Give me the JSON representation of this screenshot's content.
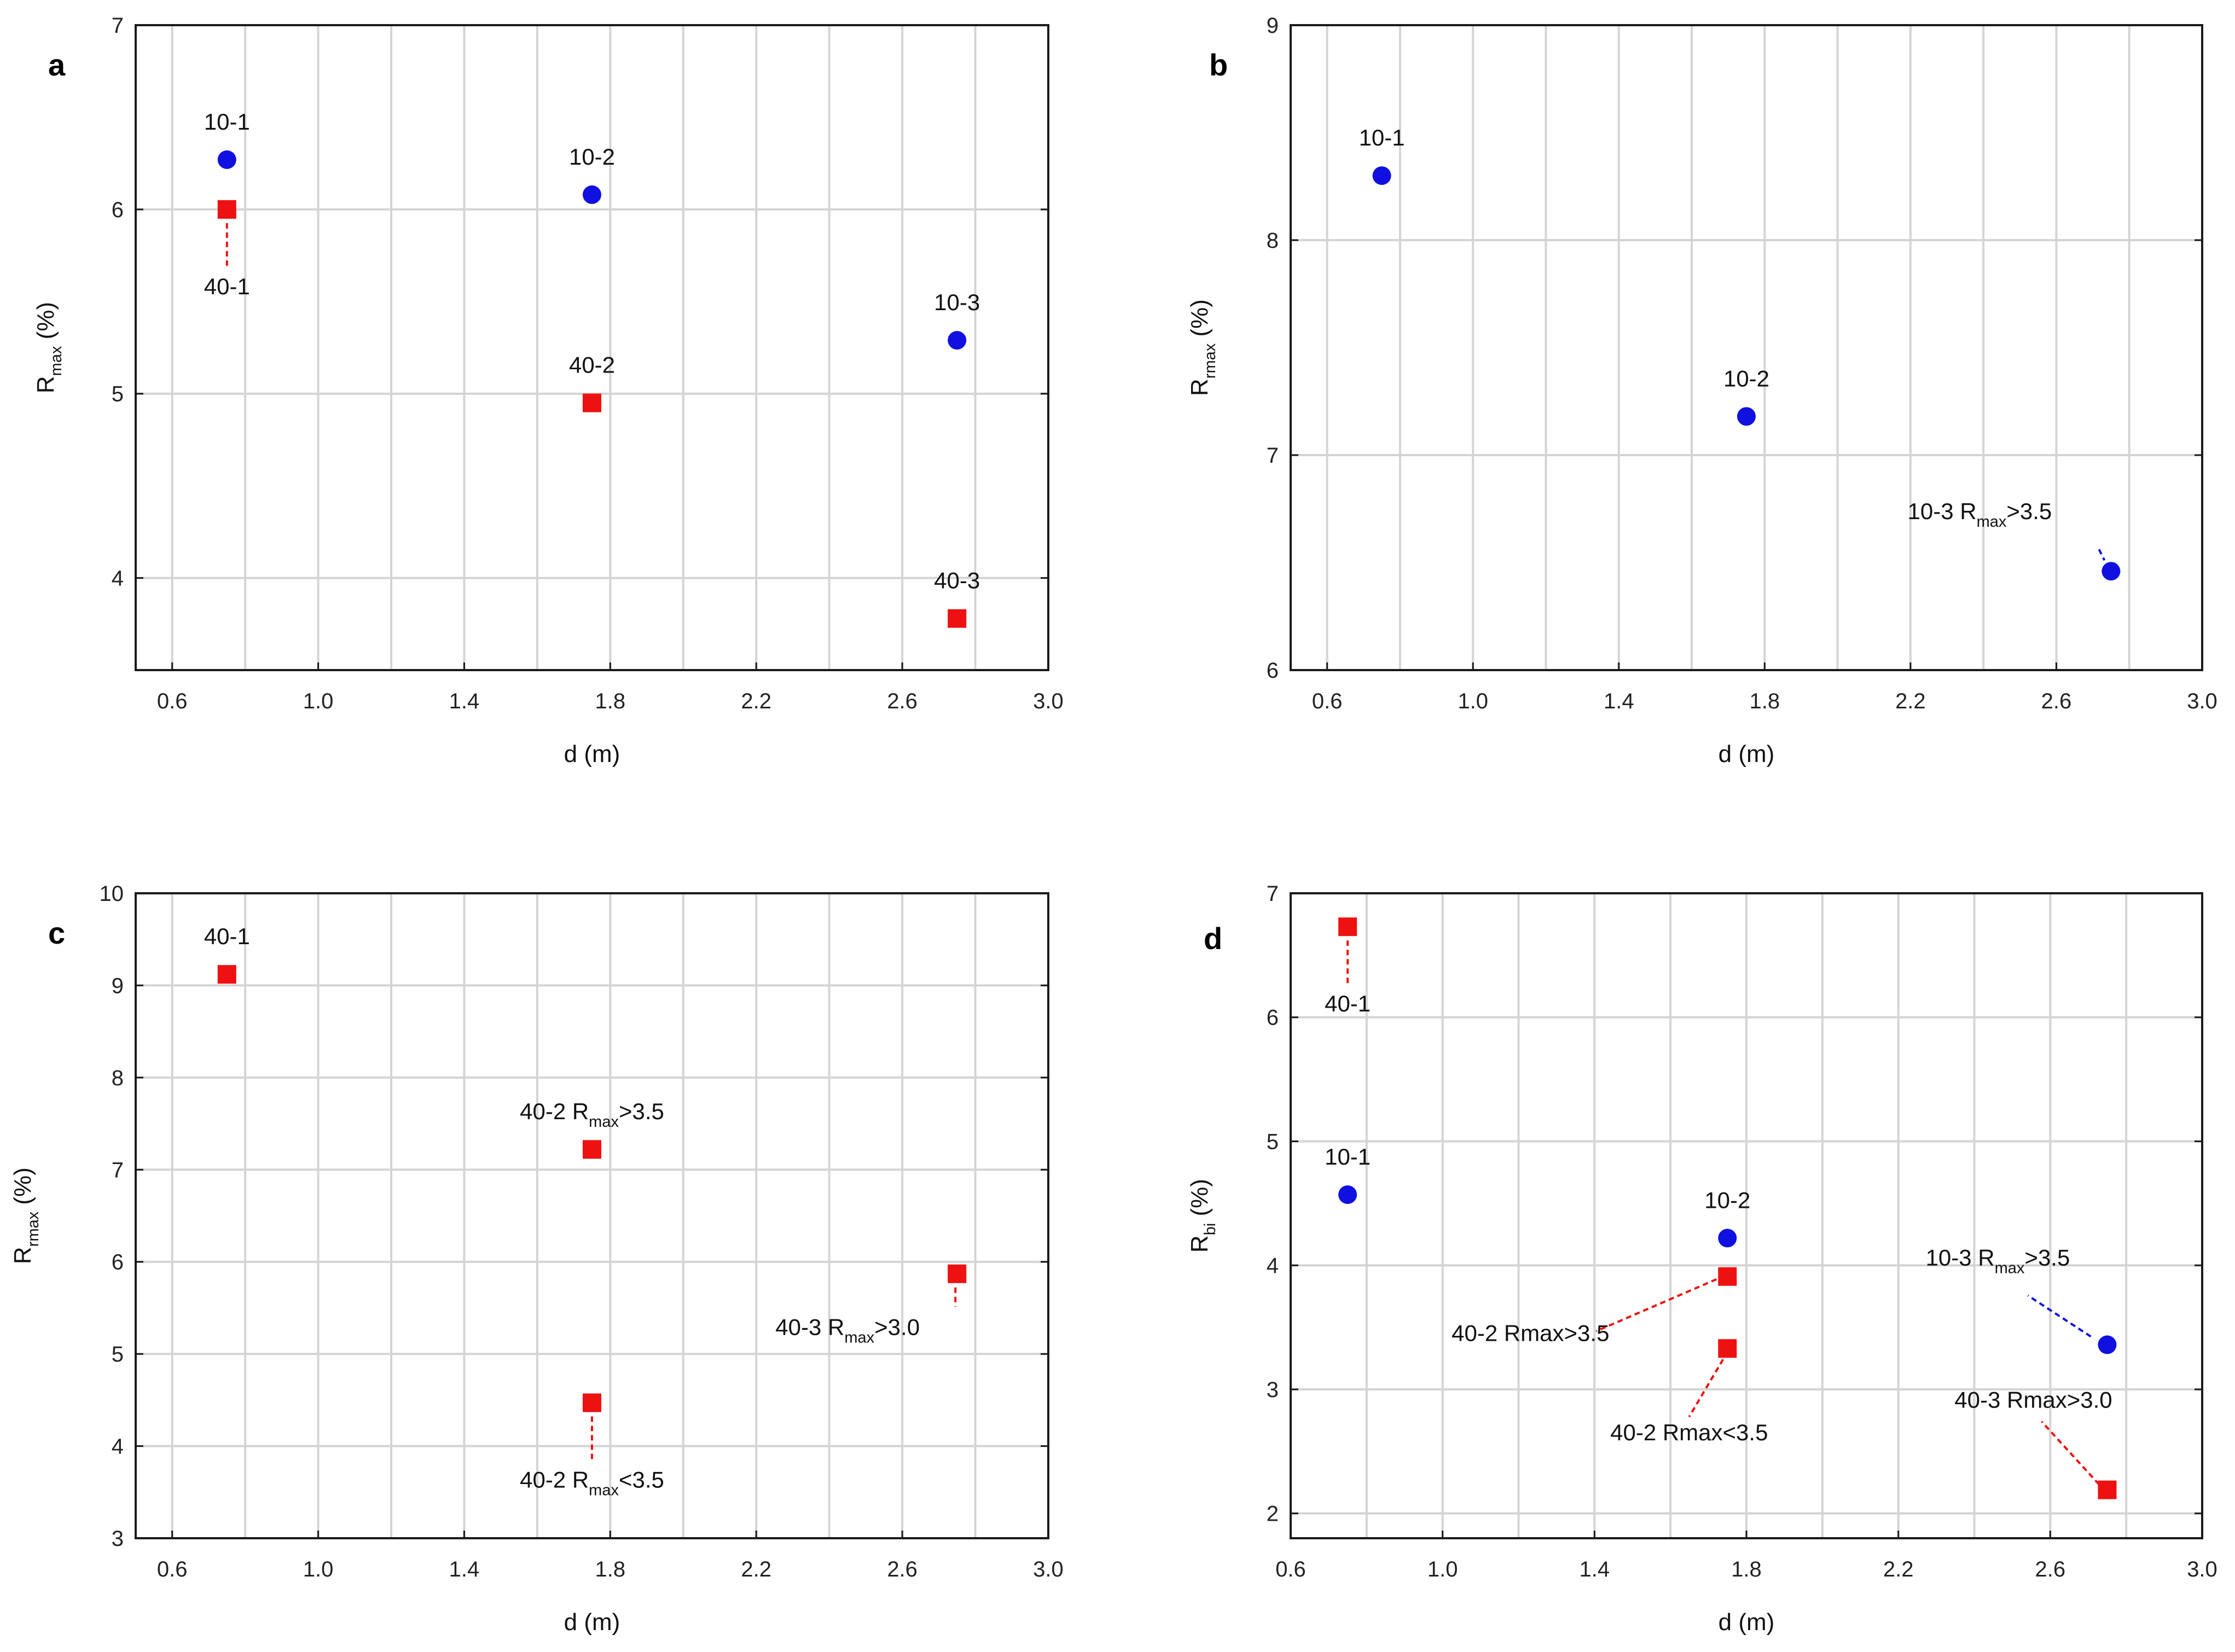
{
  "colors": {
    "blue": "#1010e0",
    "red": "#ee1111",
    "grid": "#d4d4d4",
    "frame": "#1a1a1a"
  },
  "chart_data": [
    {
      "type": "scatter",
      "panel": "a",
      "xlabel": "d (m)",
      "ylabel": {
        "base": "R",
        "sub": "max",
        "suffix": " (%)"
      },
      "xlim": [
        0.5,
        3.0
      ],
      "ylim": [
        3.5,
        7.0
      ],
      "xticks": [
        "0.6",
        "1.0",
        "1.4",
        "1.8",
        "2.2",
        "2.6",
        "3.0"
      ],
      "yticks": [
        "4",
        "5",
        "6",
        "7"
      ],
      "grid": true,
      "series": [
        {
          "name": "10",
          "marker": "circle",
          "color": "blue",
          "points": [
            {
              "x": 0.75,
              "y": 6.27,
              "label": {
                "text": "10-1",
                "pos": "above"
              }
            },
            {
              "x": 1.75,
              "y": 6.08,
              "label": {
                "text": "10-2",
                "pos": "above"
              }
            },
            {
              "x": 2.75,
              "y": 5.29,
              "label": {
                "text": "10-3",
                "pos": "above"
              }
            }
          ]
        },
        {
          "name": "40",
          "marker": "square",
          "color": "red",
          "points": [
            {
              "x": 0.75,
              "y": 6.0,
              "label": {
                "text": "40-1",
                "pos": "below",
                "leader": true
              }
            },
            {
              "x": 1.75,
              "y": 4.95,
              "label": {
                "text": "40-2",
                "pos": "above"
              }
            },
            {
              "x": 2.75,
              "y": 3.78,
              "label": {
                "text": "40-3",
                "pos": "above"
              }
            }
          ]
        }
      ]
    },
    {
      "type": "scatter",
      "panel": "b",
      "xlabel": "d (m)",
      "ylabel": {
        "base": "R",
        "sub": "rmax",
        "suffix": " (%)"
      },
      "xlim": [
        0.5,
        3.0
      ],
      "ylim": [
        6.0,
        9.0
      ],
      "xticks": [
        "0.6",
        "1.0",
        "1.4",
        "1.8",
        "2.2",
        "2.6",
        "3.0"
      ],
      "yticks": [
        "6",
        "7",
        "8",
        "9"
      ],
      "grid": true,
      "series": [
        {
          "name": "10",
          "marker": "circle",
          "color": "blue",
          "points": [
            {
              "x": 0.75,
              "y": 8.3,
              "label": {
                "text": "10-1",
                "pos": "above"
              }
            },
            {
              "x": 1.75,
              "y": 7.18,
              "label": {
                "text": "10-2",
                "pos": "above"
              }
            },
            {
              "x": 2.75,
              "y": 6.46,
              "label": {
                "pre": "10-3 R",
                "sub": "max",
                "post": ">3.5",
                "pos": "upper-left",
                "leader": true
              }
            }
          ]
        }
      ]
    },
    {
      "type": "scatter",
      "panel": "c",
      "xlabel": "d (m)",
      "ylabel": {
        "base": "R",
        "sub": "rmax",
        "suffix": " (%)"
      },
      "xlim": [
        0.5,
        3.0
      ],
      "ylim": [
        3.0,
        10.0
      ],
      "xticks": [
        "0.6",
        "1.0",
        "1.4",
        "1.8",
        "2.2",
        "2.6",
        "3.0"
      ],
      "yticks": [
        "3",
        "4",
        "5",
        "6",
        "7",
        "8",
        "9",
        "10"
      ],
      "grid": true,
      "series": [
        {
          "name": "40",
          "marker": "square",
          "color": "red",
          "points": [
            {
              "x": 0.75,
              "y": 9.12,
              "label": {
                "text": "40-1",
                "pos": "above"
              }
            },
            {
              "x": 1.75,
              "y": 7.22,
              "label": {
                "pre": "40-2  R",
                "sub": "max",
                "post": ">3.5",
                "pos": "above"
              }
            },
            {
              "x": 1.75,
              "y": 4.47,
              "label": {
                "pre": "40-2 R",
                "sub": "max",
                "post": "<3.5",
                "pos": "below",
                "leader": true
              }
            },
            {
              "x": 2.75,
              "y": 5.87,
              "label": {
                "pre": "40-3 R",
                "sub": "max",
                "post": ">3.0",
                "pos": "lower-left",
                "leader": true
              }
            }
          ]
        }
      ]
    },
    {
      "type": "scatter",
      "panel": "d",
      "xlabel": "d (m)",
      "ylabel": {
        "base": "R",
        "sub": "bi",
        "suffix": " (%)"
      },
      "xlim": [
        0.6,
        3.0
      ],
      "ylim": [
        1.8,
        7.0
      ],
      "xticks": [
        "0.6",
        "1.0",
        "1.4",
        "1.8",
        "2.2",
        "2.6",
        "3.0"
      ],
      "yticks": [
        "2",
        "3",
        "4",
        "5",
        "6",
        "7"
      ],
      "grid": true,
      "series": [
        {
          "name": "10",
          "marker": "circle",
          "color": "blue",
          "points": [
            {
              "x": 0.75,
              "y": 4.57,
              "label": {
                "text": "10-1",
                "pos": "above"
              }
            },
            {
              "x": 1.75,
              "y": 4.22,
              "label": {
                "text": "10-2",
                "pos": "above"
              }
            },
            {
              "x": 2.75,
              "y": 3.36,
              "label": {
                "pre": "10-3 R",
                "sub": "max",
                "post": ">3.5",
                "pos": "upper-left-far",
                "leader": true
              }
            }
          ]
        },
        {
          "name": "40",
          "marker": "square",
          "color": "red",
          "points": [
            {
              "x": 0.75,
              "y": 6.73,
              "label": {
                "text": "40-1",
                "pos": "below",
                "leader": true
              }
            },
            {
              "x": 1.75,
              "y": 3.91,
              "label": {
                "text": "40-2  Rmax>3.5",
                "pos": "left-far",
                "leader": true
              }
            },
            {
              "x": 1.75,
              "y": 3.33,
              "label": {
                "text": "40-2 Rmax<3.5",
                "pos": "below-far",
                "leader": true
              }
            },
            {
              "x": 2.75,
              "y": 2.19,
              "label": {
                "text": "40-3 Rmax>3.0",
                "pos": "upper-left-far2",
                "leader": true
              }
            }
          ]
        }
      ]
    }
  ]
}
